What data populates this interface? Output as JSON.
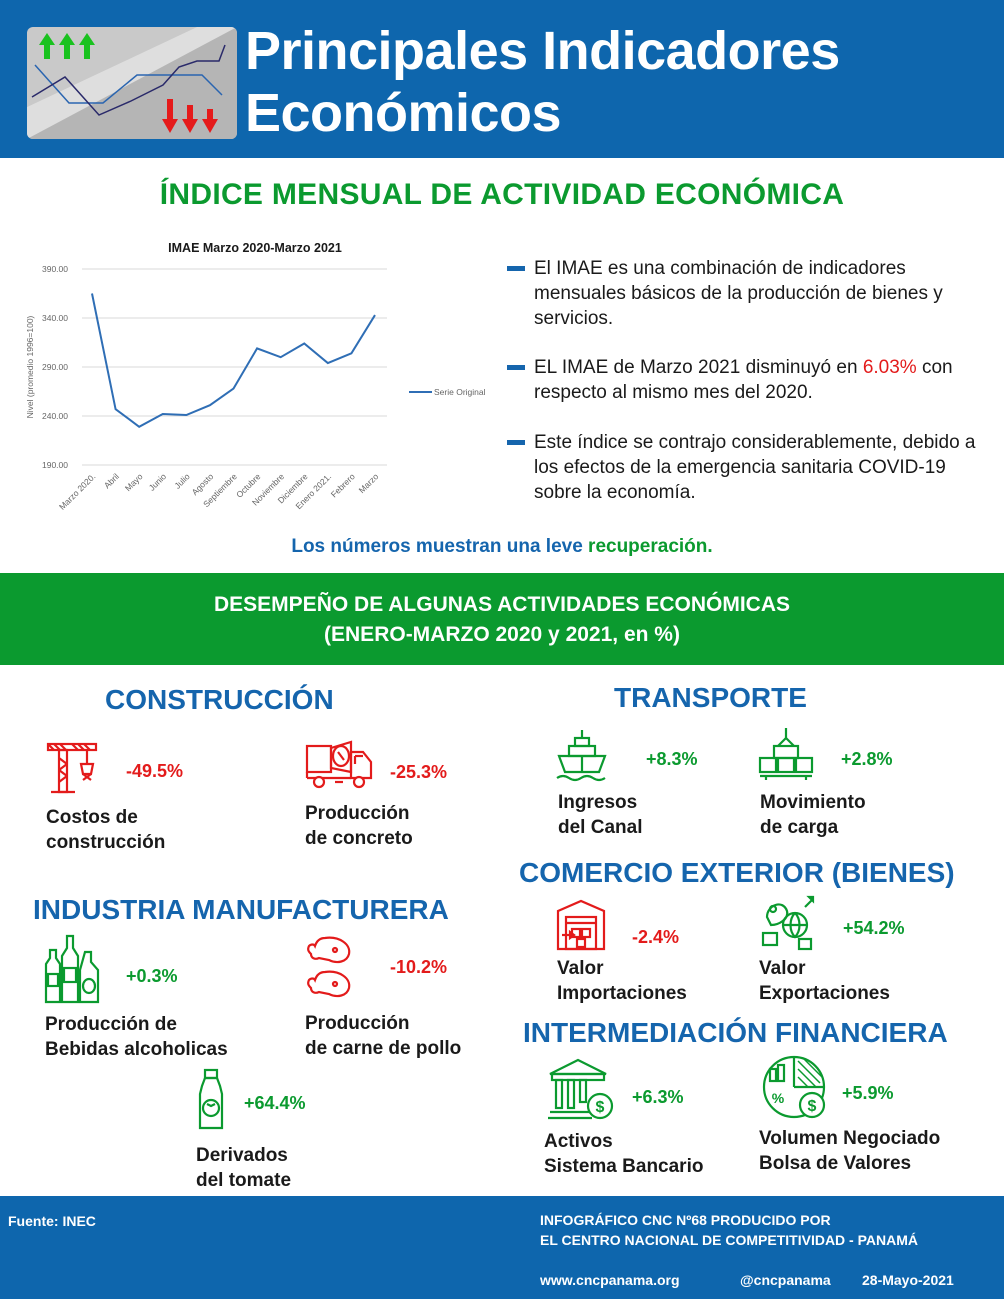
{
  "header": {
    "title_line1": "Principales Indicadores",
    "title_line2": "Económicos"
  },
  "imae": {
    "title": "ÍNDICE MENSUAL DE ACTIVIDAD ECONÓMICA",
    "bullets": [
      {
        "parts": [
          {
            "text": "El IMAE es una combinación de indicadores mensuales básicos de la producción de bienes y servicios.",
            "color": ""
          }
        ]
      },
      {
        "parts": [
          {
            "text": "EL IMAE de Marzo 2021 disminuyó en ",
            "color": ""
          },
          {
            "text": "6.03%",
            "color": "#e31b1b"
          },
          {
            "text": " con respecto al mismo mes del 2020.",
            "color": ""
          }
        ]
      },
      {
        "parts": [
          {
            "text": "Este índice se contrajo considerablemente, debido a los efectos de la emergencia sanitaria COVID-19 sobre la economía.",
            "color": ""
          }
        ]
      }
    ],
    "recovery_part1": "Los números muestran una leve ",
    "recovery_part2": "recuperación."
  },
  "chart_data": {
    "type": "line",
    "title": "IMAE Marzo 2020-Marzo 2021",
    "xlabel": "",
    "ylabel": "Nivel (promedio 1996=100)",
    "ylim": [
      190,
      390
    ],
    "yticks": [
      "190.00",
      "240.00",
      "290.00",
      "340.00",
      "390.00"
    ],
    "ytick_values": [
      190,
      240,
      290,
      340,
      390
    ],
    "grid": true,
    "legend": "right",
    "categories": [
      "Marzo 2020.",
      "Abril",
      "Mayo",
      "Junio",
      "Julio",
      "Agosto",
      "Septiembre",
      "Octubre",
      "Noviembre",
      "Diciembre",
      "Enero 2021.",
      "Febrero",
      "Marzo"
    ],
    "series": [
      {
        "name": "Serie Original",
        "color": "#2f6eb5",
        "values": [
          365,
          247,
          229,
          242,
          241,
          251,
          268,
          309,
          300,
          314,
          294,
          304,
          343
        ]
      }
    ]
  },
  "banner": {
    "line1": "DESEMPEÑO DE ALGUNAS ACTIVIDADES ECONÓMICAS",
    "line2": "(ENERO-MARZO 2020 y 2021, en %)"
  },
  "sectors": {
    "construccion": "CONSTRUCCIÓN",
    "industria": "INDUSTRIA MANUFACTURERA",
    "transporte": "TRANSPORTE",
    "comercio": "COMERCIO EXTERIOR (BIENES)",
    "financiera": "INTERMEDIACIÓN FINANCIERA"
  },
  "items": {
    "costos": {
      "value": "-49.5%",
      "line1": "Costos de",
      "line2": "construcción",
      "icon": "crane-icon",
      "color": "#e31b1b"
    },
    "concreto": {
      "value": "-25.3%",
      "line1": "Producción",
      "line2": "de concreto",
      "icon": "concrete-truck-icon",
      "color": "#e31b1b"
    },
    "bebidas": {
      "value": "+0.3%",
      "line1": "Producción de",
      "line2": "Bebidas alcoholicas",
      "icon": "bottles-icon",
      "color": "#0b9a2f"
    },
    "pollo": {
      "value": "-10.2%",
      "line1": "Producción",
      "line2": "de carne de pollo",
      "icon": "chicken-leg-icon",
      "color": "#e31b1b"
    },
    "tomate": {
      "value": "+64.4%",
      "line1": "Derivados",
      "line2": "del tomate",
      "icon": "tomato-bottle-icon",
      "color": "#0b9a2f"
    },
    "canal": {
      "value": "+8.3%",
      "line1": "Ingresos",
      "line2": "del Canal",
      "icon": "ship-icon",
      "color": "#0b9a2f"
    },
    "carga": {
      "value": "+2.8%",
      "line1": "Movimiento",
      "line2": "de carga",
      "icon": "cargo-icon",
      "color": "#0b9a2f"
    },
    "importaciones": {
      "value": "-2.4%",
      "line1": "Valor",
      "line2": "Importaciones",
      "icon": "warehouse-icon",
      "color": "#e31b1b"
    },
    "exportaciones": {
      "value": "+54.2%",
      "line1": "Valor",
      "line2": "Exportaciones",
      "icon": "globe-export-icon",
      "color": "#0b9a2f"
    },
    "activos": {
      "value": "+6.3%",
      "line1": "Activos",
      "line2": "Sistema Bancario",
      "icon": "bank-icon",
      "color": "#0b9a2f"
    },
    "bolsa": {
      "value": "+5.9%",
      "line1": "Volumen Negociado",
      "line2": "Bolsa de Valores",
      "icon": "pie-chart-money-icon",
      "color": "#0b9a2f"
    }
  },
  "footer": {
    "source": "Fuente: INEC",
    "producer_line1": "INFOGRÁFICO CNC Nº68 PRODUCIDO POR",
    "producer_line2": "EL CENTRO NACIONAL DE COMPETITIVIDAD - PANAMÁ",
    "web": "www.cncpanama.org",
    "handle": "@cncpanama",
    "date": "28-Mayo-2021"
  }
}
